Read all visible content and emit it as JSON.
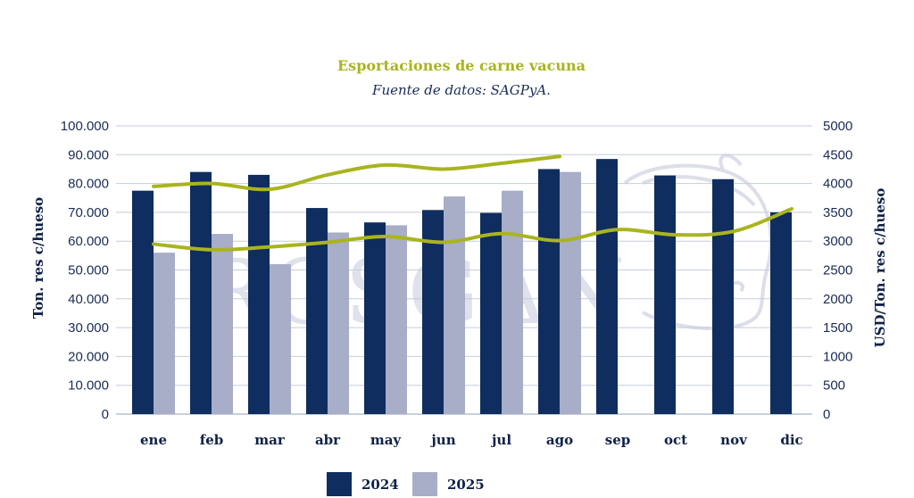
{
  "chart_data": {
    "type": "bar",
    "title": "Esportaciones de carne vacuna",
    "subtitle": "Fuente de datos: SAGPyA.",
    "ylabel_left": "Ton. res c/hueso",
    "ylabel_right": "USD/Ton. res c/hueso",
    "ylim_left": [
      0,
      100000
    ],
    "ylim_right": [
      0,
      5000
    ],
    "yticks_left": [
      "0",
      "10.000",
      "20.000",
      "30.000",
      "40.000",
      "50.000",
      "60.000",
      "70.000",
      "80.000",
      "90.000",
      "100.000"
    ],
    "yticks_right": [
      "0",
      "500",
      "1000",
      "1500",
      "2000",
      "2500",
      "3000",
      "3500",
      "4000",
      "4500",
      "5000"
    ],
    "grid": true,
    "legend_position": "bottom",
    "categories": [
      "ene",
      "feb",
      "mar",
      "abr",
      "may",
      "jun",
      "jul",
      "ago",
      "sep",
      "oct",
      "nov",
      "dic"
    ],
    "series": [
      {
        "name": "2024",
        "type": "bar",
        "axis": "left",
        "color": "#0f2d5f",
        "values": [
          77500,
          84000,
          83000,
          71500,
          66500,
          70800,
          69800,
          85000,
          88500,
          82800,
          81500,
          70000
        ]
      },
      {
        "name": "2025",
        "type": "bar",
        "axis": "left",
        "color": "#a8adc8",
        "values": [
          56000,
          62500,
          52000,
          63000,
          65500,
          75500,
          77500,
          84000,
          null,
          null,
          null,
          null
        ]
      },
      {
        "type": "line",
        "axis": "right",
        "color": "#a9b41f",
        "values": [
          3950,
          4000,
          3900,
          4150,
          4320,
          4250,
          4350,
          4470,
          null,
          null,
          null,
          null
        ]
      },
      {
        "type": "line",
        "axis": "right",
        "color": "#a9b41f",
        "values": [
          2950,
          2850,
          2900,
          2980,
          3080,
          2980,
          3130,
          3010,
          3200,
          3110,
          3170,
          3560
        ]
      }
    ],
    "watermark": "ROSGAN"
  }
}
